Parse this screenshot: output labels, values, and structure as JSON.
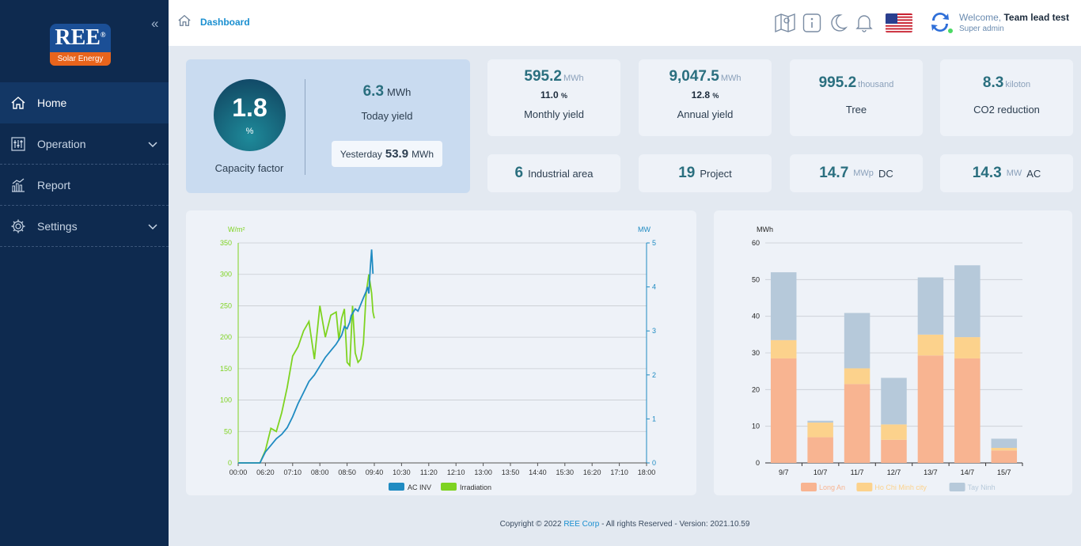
{
  "app": {
    "logo": {
      "brand": "REE",
      "reg": "®",
      "sub": "Solar Energy"
    }
  },
  "sidebar": {
    "items": [
      {
        "label": "Home",
        "icon": "home-icon",
        "active": true
      },
      {
        "label": "Operation",
        "icon": "operation-icon",
        "expandable": true
      },
      {
        "label": "Report",
        "icon": "report-icon"
      },
      {
        "label": "Settings",
        "icon": "settings-icon",
        "expandable": true
      }
    ]
  },
  "header": {
    "breadcrumb": "Dashboard",
    "welcome_prefix": "Welcome,",
    "user_name": "Team lead test",
    "user_role": "Super admin"
  },
  "capacity": {
    "value": "1.8",
    "unit": "%",
    "label": "Capacity factor",
    "today_value": "6.3",
    "today_unit": "MWh",
    "today_label": "Today yield",
    "yesterday_label": "Yesterday",
    "yesterday_value": "53.9",
    "yesterday_unit": "MWh"
  },
  "stats": [
    {
      "value": "595.2",
      "unit": "MWh",
      "pct": "11.0",
      "pct_unit": "%",
      "label": "Monthly yield"
    },
    {
      "value": "9,047.5",
      "unit": "MWh",
      "pct": "12.8",
      "pct_unit": "%",
      "label": "Annual yield"
    },
    {
      "value": "995.2",
      "unit": "thousand",
      "label": "Tree"
    },
    {
      "value": "8.3",
      "unit": "kiloton",
      "label": "CO2 reduction"
    }
  ],
  "minis": [
    {
      "value": "6",
      "label": "Industrial area"
    },
    {
      "value": "19",
      "label": "Project"
    },
    {
      "value": "14.7",
      "unit": "MWp",
      "label": "DC"
    },
    {
      "value": "14.3",
      "unit": "MW",
      "label": "AC"
    }
  ],
  "footer": {
    "prefix": "Copyright © 2022",
    "company": "REE Corp",
    "suffix": "- All rights Reserved  - Version: 2021.10.59"
  },
  "chart_data": [
    {
      "type": "line",
      "ylabel_left": "W/m²",
      "ylabel_right": "MW",
      "ylim_left": [
        0,
        350
      ],
      "ylim_right": [
        0,
        5
      ],
      "yticks_left": [
        "0",
        "50",
        "100",
        "150",
        "200",
        "250",
        "300",
        "350"
      ],
      "yticks_right": [
        "0",
        "1",
        "2",
        "3",
        "4",
        "5"
      ],
      "x_ticks": [
        "00:00",
        "06:20",
        "07:10",
        "08:00",
        "08:50",
        "09:40",
        "10:30",
        "11:20",
        "12:10",
        "13:00",
        "13:50",
        "14:40",
        "15:30",
        "16:20",
        "17:10",
        "18:00"
      ],
      "legend": "bottom",
      "series": [
        {
          "name": "AC INV",
          "color": "#1f8bc2",
          "axis": "right",
          "x": [
            0,
            0.5,
            0.8,
            1.0,
            1.2,
            1.4,
            1.6,
            1.8,
            2.0,
            2.2,
            2.4,
            2.6,
            2.8,
            3.0,
            3.2,
            3.4,
            3.6,
            3.8,
            3.9,
            4.0,
            4.1,
            4.15,
            4.2,
            4.3,
            4.4,
            4.5,
            4.6,
            4.7,
            4.75,
            4.8,
            4.85,
            4.9,
            4.95
          ],
          "y": [
            0,
            0,
            0,
            0.25,
            0.4,
            0.55,
            0.65,
            0.8,
            1.05,
            1.35,
            1.6,
            1.85,
            2.0,
            2.2,
            2.4,
            2.55,
            2.7,
            2.9,
            3.1,
            3.05,
            3.2,
            3.35,
            3.4,
            3.5,
            3.45,
            3.6,
            3.75,
            3.9,
            4.0,
            3.85,
            4.4,
            4.85,
            4.3
          ]
        },
        {
          "name": "Irradiation",
          "color": "#7ed321",
          "axis": "left",
          "x": [
            0,
            0.5,
            0.8,
            1.0,
            1.2,
            1.4,
            1.6,
            1.8,
            2.0,
            2.2,
            2.4,
            2.6,
            2.8,
            3.0,
            3.2,
            3.4,
            3.6,
            3.7,
            3.8,
            3.9,
            4.0,
            4.1,
            4.2,
            4.3,
            4.4,
            4.5,
            4.6,
            4.7,
            4.75,
            4.8,
            4.9,
            4.95,
            5.0
          ],
          "y": [
            0,
            0,
            0,
            20,
            55,
            50,
            80,
            120,
            170,
            185,
            210,
            225,
            165,
            250,
            200,
            235,
            240,
            195,
            230,
            245,
            160,
            155,
            250,
            175,
            160,
            165,
            190,
            270,
            285,
            300,
            270,
            240,
            230
          ]
        }
      ]
    },
    {
      "type": "bar",
      "stacked": true,
      "ylabel": "MWh",
      "ylim": [
        0,
        60
      ],
      "yticks": [
        "0",
        "10",
        "20",
        "30",
        "40",
        "50",
        "60"
      ],
      "categories": [
        "9/7",
        "10/7",
        "11/7",
        "12/7",
        "13/7",
        "14/7",
        "15/7"
      ],
      "legend": "bottom",
      "series": [
        {
          "name": "Long An",
          "color": "#f8b491",
          "values": [
            28.5,
            7.0,
            21.5,
            6.3,
            29.3,
            28.5,
            3.4
          ]
        },
        {
          "name": "Ho Chi Minh city",
          "color": "#fcd28c",
          "values": [
            5.0,
            4.0,
            4.3,
            4.2,
            5.7,
            5.8,
            0.7
          ]
        },
        {
          "name": "Tay Ninh",
          "color": "#b6c9da",
          "values": [
            18.5,
            0.5,
            15.1,
            12.7,
            15.6,
            19.6,
            2.5
          ]
        }
      ]
    }
  ]
}
